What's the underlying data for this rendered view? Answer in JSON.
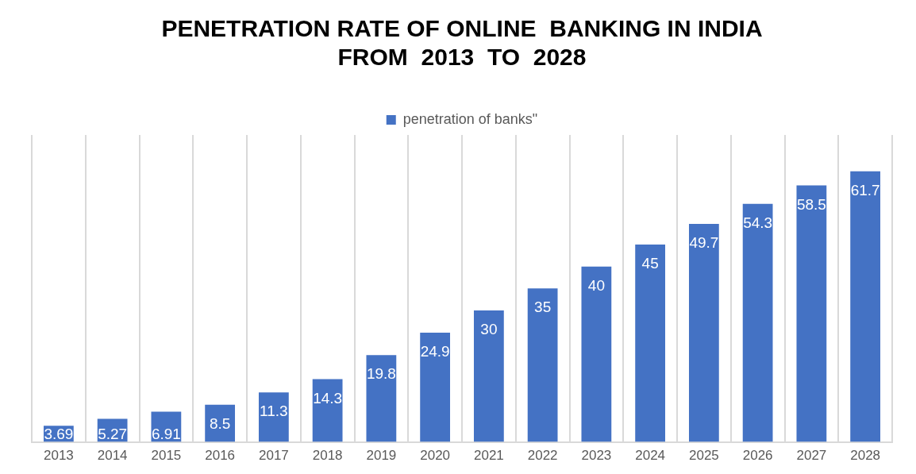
{
  "chart_data": {
    "type": "bar",
    "title": "PENETRATION RATE OF ONLINE  BANKING IN INDIA\nFROM  2013  TO  2028",
    "categories": [
      "2013",
      "2014",
      "2015",
      "2016",
      "2017",
      "2018",
      "2019",
      "2020",
      "2021",
      "2022",
      "2023",
      "2024",
      "2025",
      "2026",
      "2027",
      "2028"
    ],
    "series": [
      {
        "name": "penetration of banks\"",
        "color": "#4472c4",
        "values": [
          3.69,
          5.27,
          6.91,
          8.5,
          11.3,
          14.3,
          19.8,
          24.9,
          30,
          35.0,
          40.0,
          45.0,
          49.7,
          54.3,
          58.5,
          61.7
        ]
      }
    ],
    "data_labels": true,
    "grid": "x",
    "legend": "top"
  }
}
